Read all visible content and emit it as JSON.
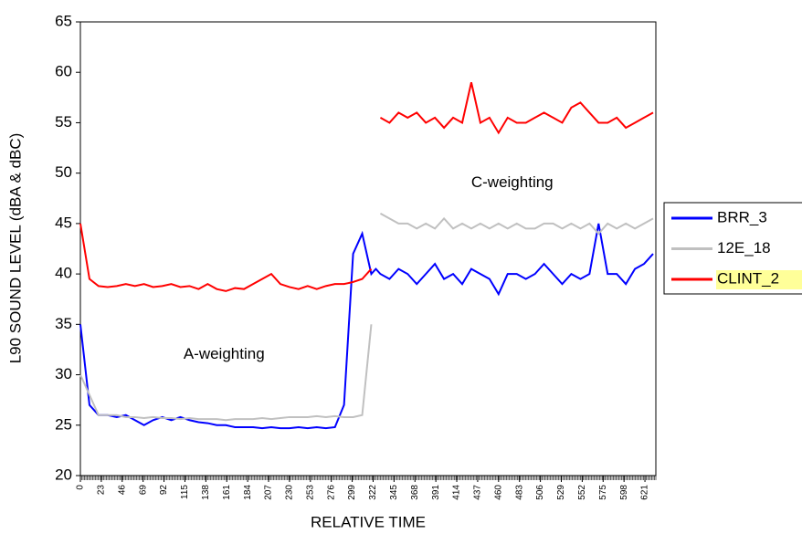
{
  "chart_data": {
    "type": "line",
    "xlabel": "RELATIVE TIME",
    "ylabel": "L90 SOUND LEVEL (dBA & dBC)",
    "annotations": [
      {
        "text": "C-weighting",
        "x": 475,
        "y": 49
      },
      {
        "text": "A-weighting",
        "x": 158,
        "y": 32
      }
    ],
    "x": [
      0,
      10,
      20,
      30,
      40,
      50,
      60,
      70,
      80,
      90,
      100,
      110,
      120,
      130,
      140,
      150,
      160,
      170,
      180,
      190,
      200,
      210,
      220,
      230,
      240,
      250,
      260,
      270,
      280,
      290,
      300,
      310,
      320,
      325,
      330,
      340,
      350,
      360,
      370,
      380,
      390,
      400,
      410,
      420,
      430,
      440,
      450,
      460,
      470,
      480,
      490,
      500,
      510,
      520,
      530,
      540,
      550,
      560,
      570,
      580,
      590,
      600,
      610,
      620,
      630
    ],
    "series": [
      {
        "name": "BRR_3",
        "color": "#0000ff",
        "values": [
          35,
          27,
          26,
          26,
          25.8,
          26,
          25.5,
          25,
          25.5,
          25.8,
          25.5,
          25.8,
          25.5,
          25.3,
          25.2,
          25,
          25,
          24.8,
          24.8,
          24.8,
          24.7,
          24.8,
          24.7,
          24.7,
          24.8,
          24.7,
          24.8,
          24.7,
          24.8,
          27,
          42,
          44,
          40,
          40.5,
          40,
          39.5,
          40.5,
          40,
          39,
          40,
          41,
          39.5,
          40,
          39,
          40.5,
          40,
          39.5,
          38,
          40,
          40,
          39.5,
          40,
          41,
          40,
          39,
          40,
          39.5,
          40,
          45,
          40,
          40,
          39,
          40.5,
          41,
          42
        ]
      },
      {
        "name": "12E_18",
        "color": "#c0c0c0",
        "values": [
          30,
          28,
          26,
          26,
          26,
          25.8,
          25.8,
          25.7,
          25.8,
          25.7,
          25.7,
          25.6,
          25.7,
          25.6,
          25.6,
          25.6,
          25.5,
          25.6,
          25.6,
          25.6,
          25.7,
          25.6,
          25.7,
          25.8,
          25.8,
          25.8,
          25.9,
          25.8,
          25.9,
          25.8,
          25.8,
          26,
          35,
          null,
          46,
          45.5,
          45,
          45,
          44.5,
          45,
          44.5,
          45.5,
          44.5,
          45,
          44.5,
          45,
          44.5,
          45,
          44.5,
          45,
          44.5,
          44.5,
          45,
          45,
          44.5,
          45,
          44.5,
          45,
          44,
          45,
          44.5,
          45,
          44.5,
          45,
          45.5
        ]
      },
      {
        "name": "CLINT_2",
        "color": "#ff0000",
        "values": [
          45,
          39.5,
          38.8,
          38.7,
          38.8,
          39,
          38.8,
          39,
          38.7,
          38.8,
          39,
          38.7,
          38.8,
          38.5,
          39,
          38.5,
          38.3,
          38.6,
          38.5,
          39,
          39.5,
          40,
          39,
          38.7,
          38.5,
          38.8,
          38.5,
          38.8,
          39,
          39,
          39.2,
          39.5,
          40.5,
          null,
          55.5,
          55,
          56,
          55.5,
          56,
          55,
          55.5,
          54.5,
          55.5,
          55,
          59,
          55,
          55.5,
          54,
          55.5,
          55,
          55,
          55.5,
          56,
          55.5,
          55,
          56.5,
          57,
          56,
          55,
          55,
          55.5,
          54.5,
          55,
          55.5,
          56
        ]
      }
    ],
    "xlim": [
      0,
      633
    ],
    "xticks": [
      0,
      23,
      46,
      69,
      92,
      115,
      138,
      161,
      184,
      207,
      230,
      253,
      276,
      299,
      322,
      345,
      368,
      391,
      414,
      437,
      460,
      483,
      506,
      529,
      552,
      575,
      598,
      621
    ],
    "ylim": [
      20,
      65
    ],
    "yticks": [
      20,
      25,
      30,
      35,
      40,
      45,
      50,
      55,
      60,
      65
    ],
    "legend_position": "right",
    "legend_highlight": "#ffff99"
  }
}
